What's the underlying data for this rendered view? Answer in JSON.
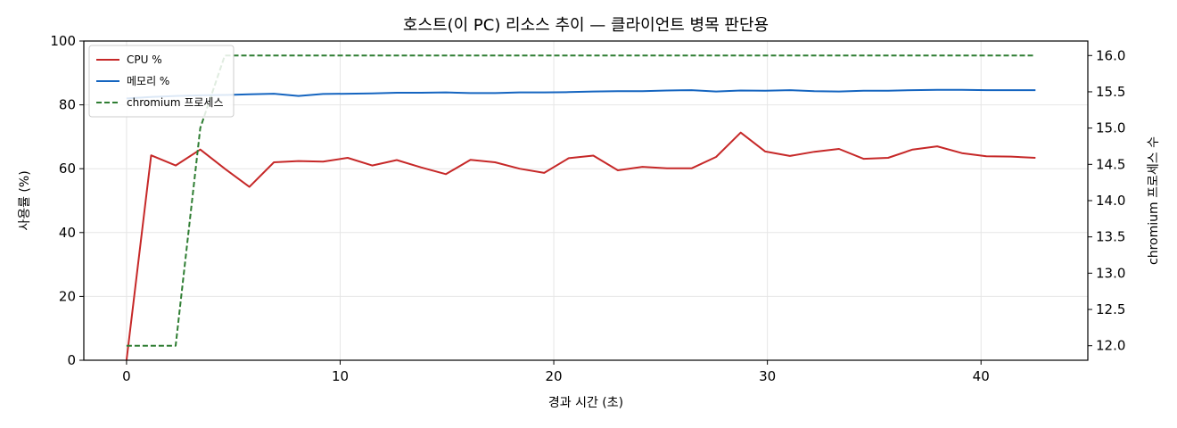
{
  "chart_data": {
    "type": "line",
    "title": "호스트(이 PC) 리소스 추이 — 클라이언트 병목 판단용",
    "xlabel": "경과 시간 (초)",
    "ylabel": "사용률 (%)",
    "y2label": "chromium 프로세스 수",
    "xlim": [
      -2,
      45
    ],
    "ylim": [
      0,
      100
    ],
    "y2lim": [
      11.8,
      16.2
    ],
    "x_ticks": [
      0,
      10,
      20,
      30,
      40
    ],
    "y_ticks": [
      0,
      20,
      40,
      60,
      80,
      100
    ],
    "y2_ticks": [
      12.0,
      12.5,
      13.0,
      13.5,
      14.0,
      14.5,
      15.0,
      15.5,
      16.0
    ],
    "grid": true,
    "legend_position": "top-left",
    "x": [
      0,
      1.15,
      2.3,
      3.45,
      4.6,
      5.75,
      6.9,
      8.05,
      9.2,
      10.35,
      11.5,
      12.65,
      13.8,
      14.95,
      16.1,
      17.25,
      18.4,
      19.55,
      20.7,
      21.85,
      23.0,
      24.15,
      25.3,
      26.45,
      27.6,
      28.75,
      29.9,
      31.05,
      32.2,
      33.35,
      34.5,
      35.65,
      36.8,
      37.95,
      39.1,
      40.25,
      41.4,
      42.55
    ],
    "series": [
      {
        "name": "CPU %",
        "axis": "left",
        "color": "#c62828",
        "style": "solid",
        "values": [
          0,
          64.2,
          61.0,
          66.0,
          60.0,
          54.3,
          62.0,
          62.4,
          62.2,
          63.4,
          61.0,
          62.7,
          60.4,
          58.3,
          62.8,
          62.0,
          60.0,
          58.7,
          63.3,
          64.1,
          59.5,
          60.6,
          60.1,
          60.1,
          63.7,
          71.3,
          65.4,
          64.0,
          65.3,
          66.2,
          63.1,
          63.4,
          66.0,
          67.0,
          64.9,
          63.9,
          63.8,
          63.4
        ]
      },
      {
        "name": "메모리 %",
        "axis": "left",
        "color": "#1565c0",
        "style": "solid",
        "values": [
          82.0,
          82.5,
          82.8,
          83.0,
          83.1,
          83.3,
          83.5,
          82.8,
          83.4,
          83.5,
          83.6,
          83.8,
          83.8,
          83.9,
          83.7,
          83.7,
          83.9,
          83.9,
          84.0,
          84.2,
          84.3,
          84.3,
          84.5,
          84.6,
          84.2,
          84.5,
          84.4,
          84.6,
          84.3,
          84.2,
          84.4,
          84.4,
          84.6,
          84.7,
          84.7,
          84.6,
          84.6,
          84.6
        ]
      },
      {
        "name": "chromium 프로세스",
        "axis": "right",
        "color": "#2e7d32",
        "style": "dashed",
        "values": [
          12,
          12,
          12,
          15,
          16,
          16,
          16,
          16,
          16,
          16,
          16,
          16,
          16,
          16,
          16,
          16,
          16,
          16,
          16,
          16,
          16,
          16,
          16,
          16,
          16,
          16,
          16,
          16,
          16,
          16,
          16,
          16,
          16,
          16,
          16,
          16,
          16,
          16
        ]
      }
    ]
  }
}
